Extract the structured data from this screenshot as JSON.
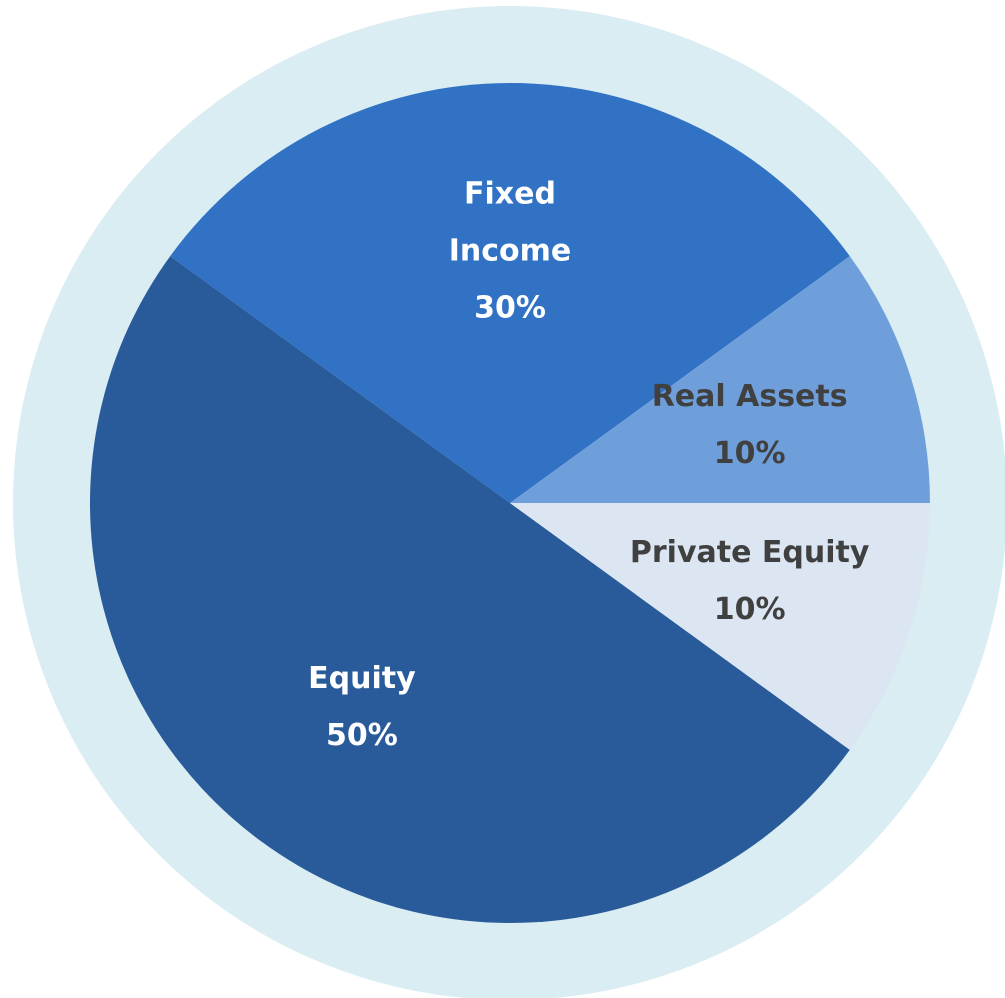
{
  "chart_data": {
    "type": "pie",
    "categories": [
      "Equity",
      "Fixed Income",
      "Real Assets",
      "Private Equity"
    ],
    "values": [
      50,
      30,
      10,
      10
    ],
    "value_labels": [
      "50%",
      "30%",
      "10%",
      "10%"
    ],
    "colors": [
      "#295b9a",
      "#3172c4",
      "#6f9fdb",
      "#dce6f2"
    ],
    "label_colors": [
      "#ffffff",
      "#ffffff",
      "#404040",
      "#404040"
    ],
    "background_color": "#daedf3"
  }
}
